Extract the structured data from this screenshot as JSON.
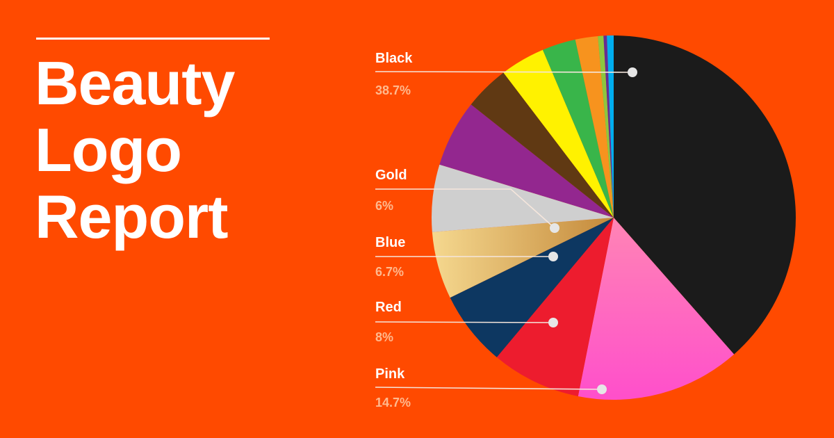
{
  "header": {
    "title_lines": [
      "Beauty",
      "Logo",
      "Report"
    ]
  },
  "chart_data": {
    "type": "pie",
    "title": "Beauty Logo Report",
    "start_angle_deg": 0,
    "direction": "clockwise",
    "slices": [
      {
        "name": "Black",
        "value": 38.7,
        "color": "#1B1B1B",
        "labeled": true,
        "pct_label": "38.7%"
      },
      {
        "name": "Pink",
        "value": 14.7,
        "color": "#FF5FB8",
        "labeled": true,
        "pct_label": "14.7%"
      },
      {
        "name": "Red",
        "value": 8.0,
        "color": "#ED1C2E",
        "labeled": true,
        "pct_label": "8%"
      },
      {
        "name": "Blue",
        "value": 6.7,
        "color": "#0D3761",
        "labeled": true,
        "pct_label": "6.7%"
      },
      {
        "name": "Gold",
        "value": 6.0,
        "color": "#D8A85A",
        "labeled": true,
        "pct_label": "6%"
      },
      {
        "name": "",
        "value": 6.0,
        "color": "#CFCFCF",
        "labeled": false
      },
      {
        "name": "",
        "value": 6.0,
        "color": "#93278F",
        "labeled": false
      },
      {
        "name": "",
        "value": 4.0,
        "color": "#603913",
        "labeled": false
      },
      {
        "name": "",
        "value": 4.0,
        "color": "#FFF200",
        "labeled": false
      },
      {
        "name": "",
        "value": 3.0,
        "color": "#39B54A",
        "labeled": false
      },
      {
        "name": "",
        "value": 2.0,
        "color": "#F7931E",
        "labeled": false
      },
      {
        "name": "",
        "value": 0.5,
        "color": "#8DC63F",
        "labeled": false
      },
      {
        "name": "",
        "value": 0.3,
        "color": "#662D91",
        "labeled": false
      },
      {
        "name": "",
        "value": 0.6,
        "color": "#00AEEF",
        "labeled": false
      }
    ]
  }
}
